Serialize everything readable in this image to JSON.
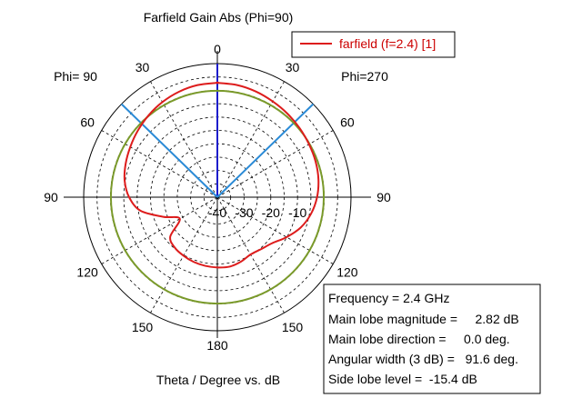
{
  "chart_data": {
    "type": "polar",
    "title": "Farfield Gain Abs (Phi=90)",
    "xlabel": "Theta / Degree vs. dB",
    "phi_left_label": "Phi= 90",
    "phi_right_label": "Phi=270",
    "angle_labels": [
      {
        "angle": 0,
        "side": "right",
        "text": "0"
      },
      {
        "angle": 30,
        "side": "left",
        "text": "30"
      },
      {
        "angle": 30,
        "side": "right",
        "text": "30"
      },
      {
        "angle": 60,
        "side": "left",
        "text": "60"
      },
      {
        "angle": 60,
        "side": "right",
        "text": "60"
      },
      {
        "angle": 90,
        "side": "left",
        "text": "90"
      },
      {
        "angle": 90,
        "side": "right",
        "text": "90"
      },
      {
        "angle": 120,
        "side": "left",
        "text": "120"
      },
      {
        "angle": 120,
        "side": "right",
        "text": "120"
      },
      {
        "angle": 150,
        "side": "left",
        "text": "150"
      },
      {
        "angle": 150,
        "side": "right",
        "text": "150"
      },
      {
        "angle": 180,
        "side": "right",
        "text": "180"
      }
    ],
    "radial_tick_labels": [
      "-40",
      "-30",
      "-20",
      "-10"
    ],
    "rlim": [
      -40,
      10
    ],
    "grid": true,
    "legend_position": "top-right",
    "series": [
      {
        "name": "farfield (f=2.4) [1]",
        "color": "#dd1c1c",
        "theta": [
          0,
          10,
          20,
          30,
          40,
          50,
          60,
          70,
          80,
          90,
          100,
          110,
          120,
          130,
          140,
          150,
          160,
          170,
          180
        ],
        "right_gain": [
          2.82,
          2.62,
          2.1,
          1.4,
          0.8,
          0.2,
          -0.4,
          -0.9,
          -1.6,
          -2.7,
          -4.4,
          -6.8,
          -10.1,
          -13.2,
          -14.6,
          -15.2,
          -14.3,
          -13.6,
          -13.7
        ],
        "left_gain": [
          2.82,
          2.6,
          2.0,
          1.1,
          0.0,
          -1.2,
          -2.4,
          -3.5,
          -4.8,
          -7.0,
          -10.8,
          -18.5,
          -23.8,
          -17.0,
          -15.3,
          -14.7,
          -14.2,
          -13.9,
          -13.7
        ]
      }
    ],
    "main_lobe_direction_deg": 0.0,
    "beamwidth_3db_deg": 91.6,
    "main_lobe_magnitude_db": 2.82,
    "reference_level_db": -0.18,
    "colors": {
      "main_lobe_line": "#1d1dcc",
      "beamwidth_lines": "#2a8ad6",
      "reference_circle": "#7a9a2a",
      "grid": "#000000"
    }
  },
  "info_box": {
    "frequency": "Frequency = 2.4 GHz",
    "main_lobe_magnitude": "Main lobe magnitude =     2.82 dB",
    "main_lobe_direction": "Main lobe direction =     0.0 deg.",
    "angular_width": "Angular width (3 dB) =   91.6 deg.",
    "side_lobe_level": "Side lobe level =  -15.4 dB"
  }
}
